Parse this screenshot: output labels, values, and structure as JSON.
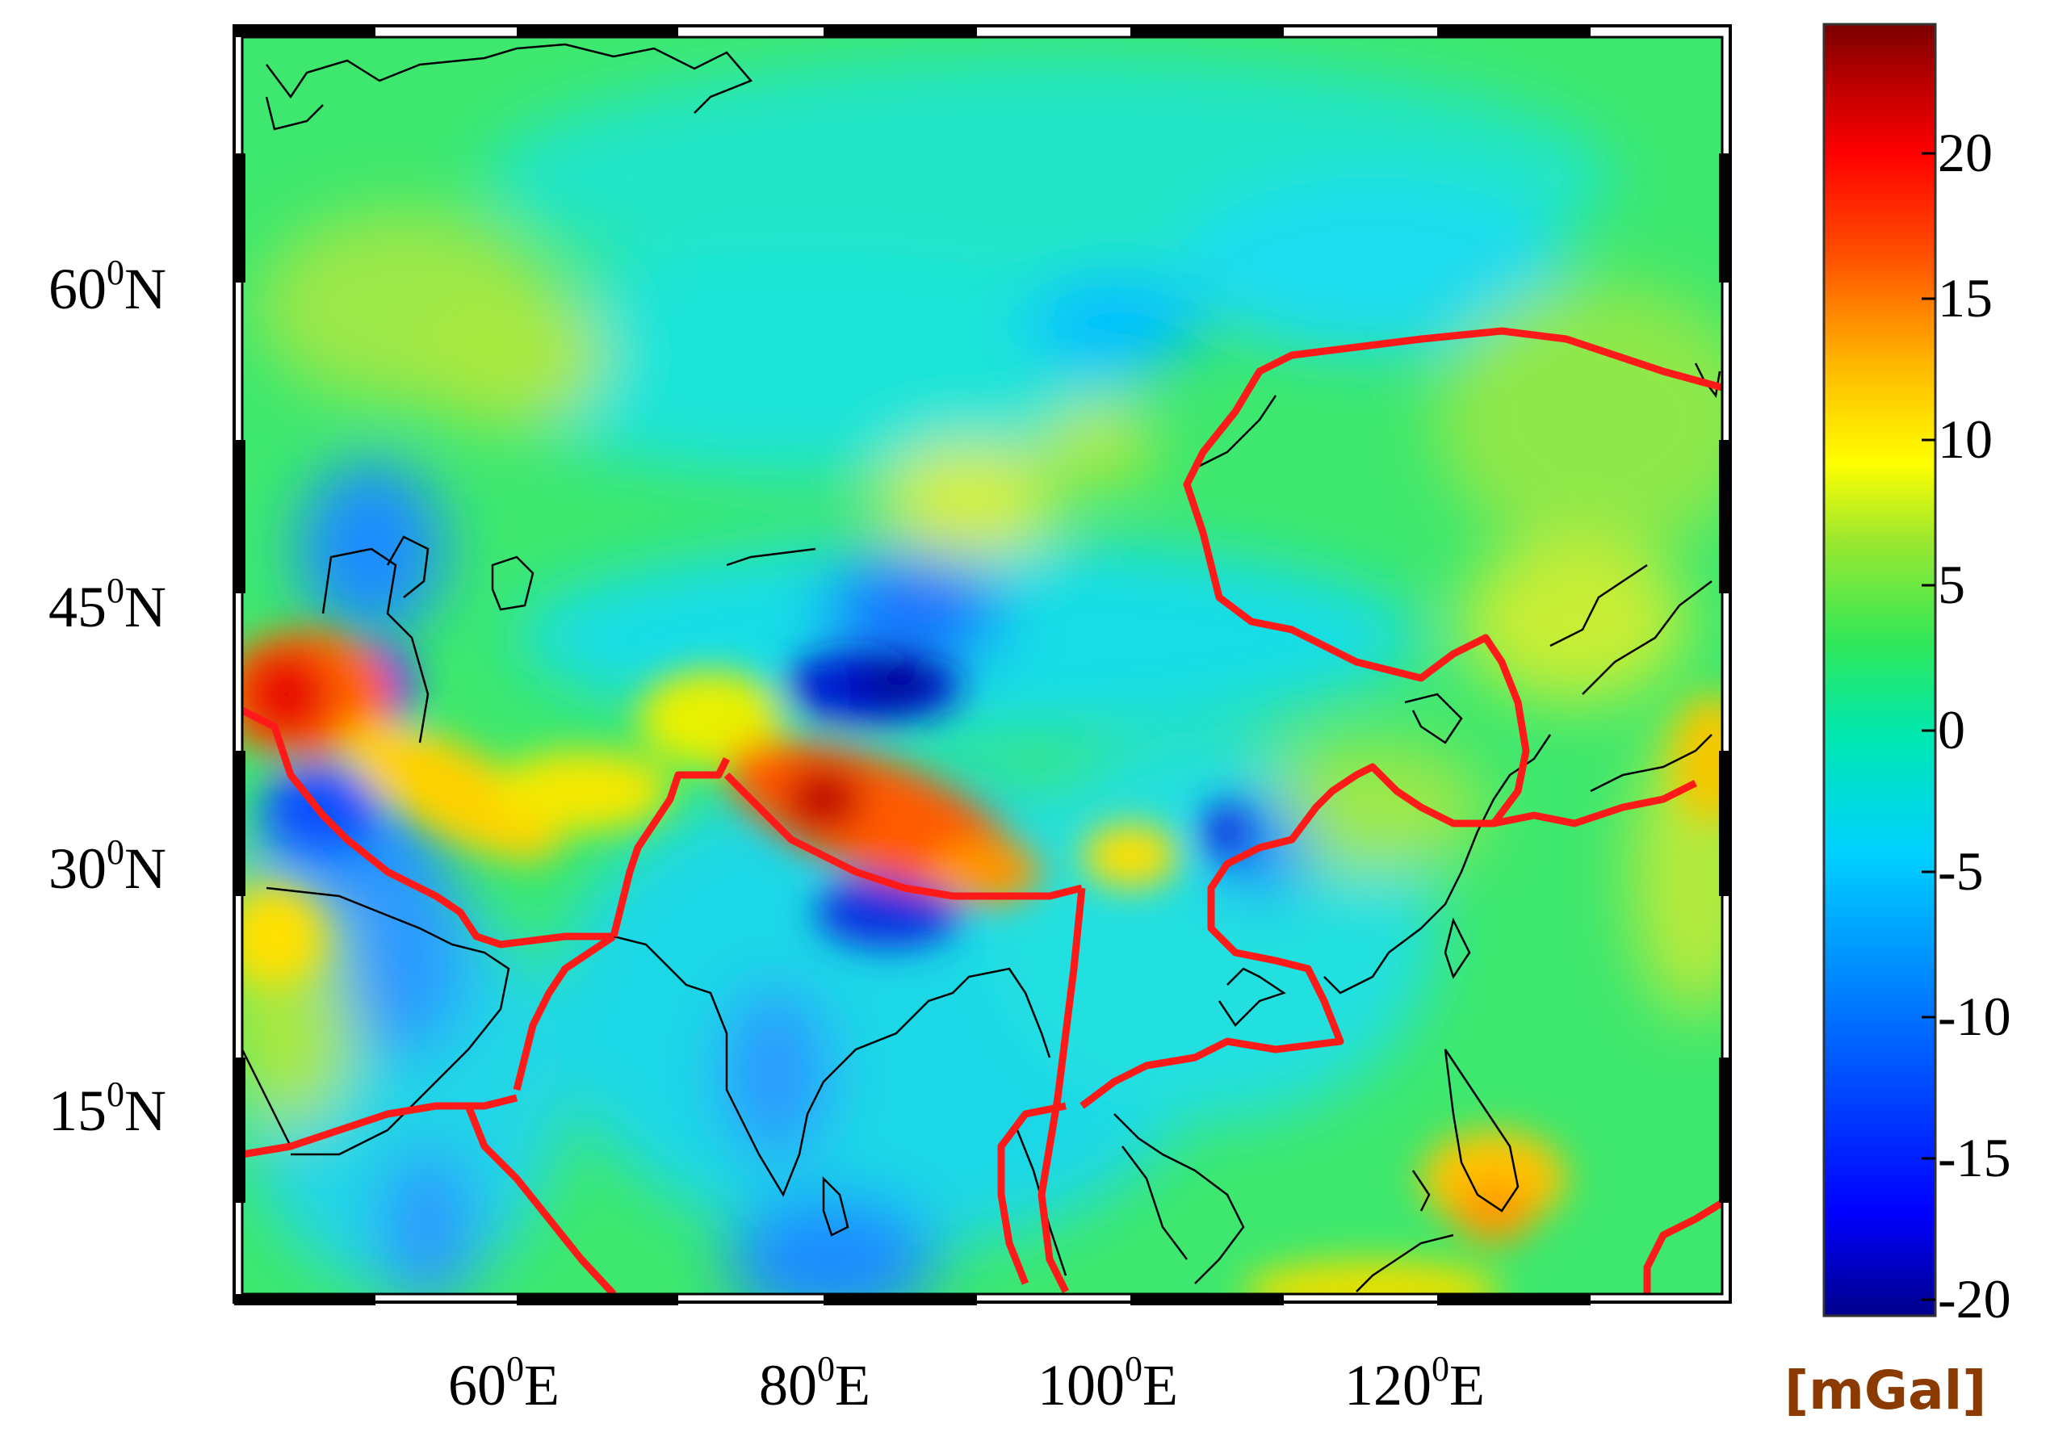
{
  "map": {
    "lat_labels": [
      {
        "deg": "60",
        "sup": "0",
        "hem": "N"
      },
      {
        "deg": "45",
        "sup": "0",
        "hem": "N"
      },
      {
        "deg": "30",
        "sup": "0",
        "hem": "N"
      },
      {
        "deg": "15",
        "sup": "0",
        "hem": "N"
      }
    ],
    "lon_labels": [
      {
        "deg": "60",
        "sup": "0",
        "hem": "E"
      },
      {
        "deg": "80",
        "sup": "0",
        "hem": "E"
      },
      {
        "deg": "100",
        "sup": "0",
        "hem": "E"
      },
      {
        "deg": "120",
        "sup": "0",
        "hem": "E"
      }
    ],
    "extent": {
      "lon_min": 40,
      "lon_max": 140,
      "lat_min": 0,
      "lat_max": 75
    },
    "field": "gravity anomaly",
    "plate_boundary_color": "#ff0000",
    "coastline_color": "#000000"
  },
  "colorbar": {
    "ticks": [
      "20",
      "15",
      "10",
      "5",
      "0",
      "-5",
      "-10",
      "-15",
      "-20"
    ],
    "range": [
      -22,
      24
    ],
    "unit": "[mGal]",
    "unit_color": "#8b3a00",
    "colors": [
      "#00008b",
      "#0000ff",
      "#0078ff",
      "#00d2ff",
      "#00e8b0",
      "#2fe85a",
      "#9be82f",
      "#ffff00",
      "#ffb400",
      "#ff5000",
      "#ff0000",
      "#b40000",
      "#7a0000"
    ]
  }
}
